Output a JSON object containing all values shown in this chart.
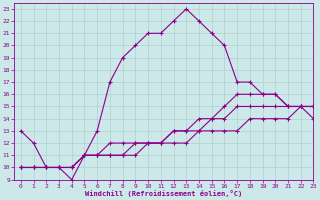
{
  "xlabel": "Windchill (Refroidissement éolien,°C)",
  "ylabel": "",
  "background_color": "#cce8e8",
  "line_color": "#8b008b",
  "grid_color": "#aacccc",
  "xlim": [
    -0.5,
    23
  ],
  "ylim": [
    9,
    23.5
  ],
  "xticks": [
    0,
    1,
    2,
    3,
    4,
    5,
    6,
    7,
    8,
    9,
    10,
    11,
    12,
    13,
    14,
    15,
    16,
    17,
    18,
    19,
    20,
    21,
    22,
    23
  ],
  "yticks": [
    9,
    10,
    11,
    12,
    13,
    14,
    15,
    16,
    17,
    18,
    19,
    20,
    21,
    22,
    23
  ],
  "line1_x": [
    0,
    1,
    2,
    3,
    4,
    5,
    6,
    7,
    8,
    9,
    10,
    11,
    12,
    13,
    14,
    15,
    16,
    17,
    18,
    19,
    20,
    21,
    22,
    23
  ],
  "line1_y": [
    13,
    12,
    10,
    10,
    9,
    11,
    13,
    17,
    19,
    20,
    21,
    21,
    22,
    23,
    22,
    21,
    20,
    17,
    17,
    16,
    16,
    15,
    15,
    14
  ],
  "line2_x": [
    0,
    1,
    2,
    3,
    4,
    5,
    6,
    7,
    8,
    9,
    10,
    11,
    12,
    13,
    14,
    15,
    16,
    17,
    18,
    19,
    20,
    21,
    22,
    23
  ],
  "line2_y": [
    10,
    10,
    10,
    10,
    10,
    11,
    11,
    11,
    11,
    11,
    12,
    12,
    12,
    12,
    13,
    13,
    13,
    13,
    14,
    14,
    14,
    14,
    15,
    15
  ],
  "line3_x": [
    0,
    1,
    2,
    3,
    4,
    5,
    6,
    7,
    8,
    9,
    10,
    11,
    12,
    13,
    14,
    15,
    16,
    17,
    18,
    19,
    20,
    21,
    22,
    23
  ],
  "line3_y": [
    10,
    10,
    10,
    10,
    10,
    11,
    11,
    11,
    11,
    12,
    12,
    12,
    13,
    13,
    13,
    14,
    14,
    15,
    15,
    15,
    15,
    15,
    15,
    15
  ],
  "line4_x": [
    0,
    1,
    2,
    3,
    4,
    5,
    6,
    7,
    8,
    9,
    10,
    11,
    12,
    13,
    14,
    15,
    16,
    17,
    18,
    19,
    20,
    21,
    22,
    23
  ],
  "line4_y": [
    10,
    10,
    10,
    10,
    10,
    11,
    11,
    12,
    12,
    12,
    12,
    12,
    13,
    13,
    14,
    14,
    15,
    16,
    16,
    16,
    16,
    15,
    15,
    15
  ]
}
